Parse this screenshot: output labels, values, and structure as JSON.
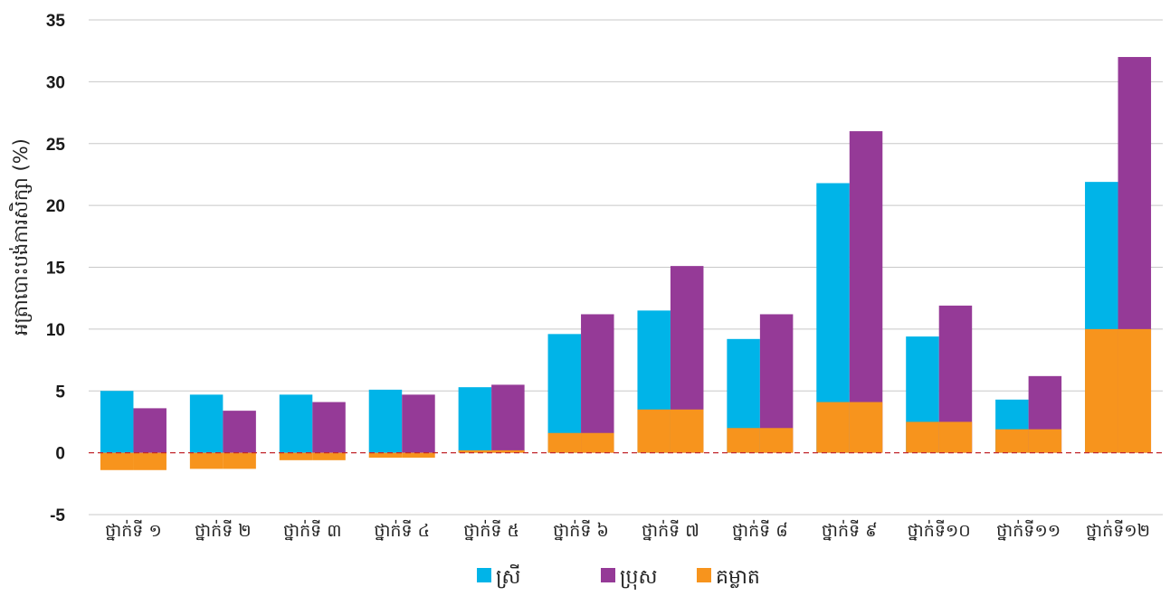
{
  "chart_data": {
    "type": "bar",
    "ylabel": "អត្រាបោះបង់ការសិក្សា (%)",
    "xlabel": "",
    "ylim": [
      -5,
      35
    ],
    "yticks": [
      "-5",
      "0",
      "5",
      "10",
      "15",
      "20",
      "25",
      "30",
      "35"
    ],
    "grid": true,
    "legend_position": "bottom",
    "categories": [
      "ថ្នាក់ទី ១",
      "ថ្នាក់ទី ២",
      "ថ្នាក់ទី ៣",
      "ថ្នាក់ទី ៤",
      "ថ្នាក់ទី ៥",
      "ថ្នាក់ទី ៦",
      "ថ្នាក់ទី ៧",
      "ថ្នាក់ទី ៨",
      "ថ្នាក់ទី ៩",
      "ថ្នាក់ទី១០",
      "ថ្នាក់ទី១១",
      "ថ្នាក់ទី១២"
    ],
    "series": [
      {
        "name": "ស្រី",
        "color": "#00b4e8",
        "values": [
          5.0,
          4.7,
          4.7,
          5.1,
          5.3,
          9.6,
          11.5,
          9.2,
          21.8,
          9.4,
          4.3,
          21.9
        ]
      },
      {
        "name": "ប្រុស",
        "color": "#953a97",
        "values": [
          3.6,
          3.4,
          4.1,
          4.7,
          5.5,
          11.2,
          15.1,
          11.2,
          26.0,
          11.9,
          6.2,
          32.0
        ]
      },
      {
        "name": "គម្លាត",
        "color": "#f7941d",
        "values": [
          -1.4,
          -1.3,
          -0.6,
          -0.4,
          0.2,
          1.6,
          3.5,
          2.0,
          4.1,
          2.5,
          1.9,
          10.0
        ]
      }
    ],
    "zero_line_color": "#c1272d"
  }
}
